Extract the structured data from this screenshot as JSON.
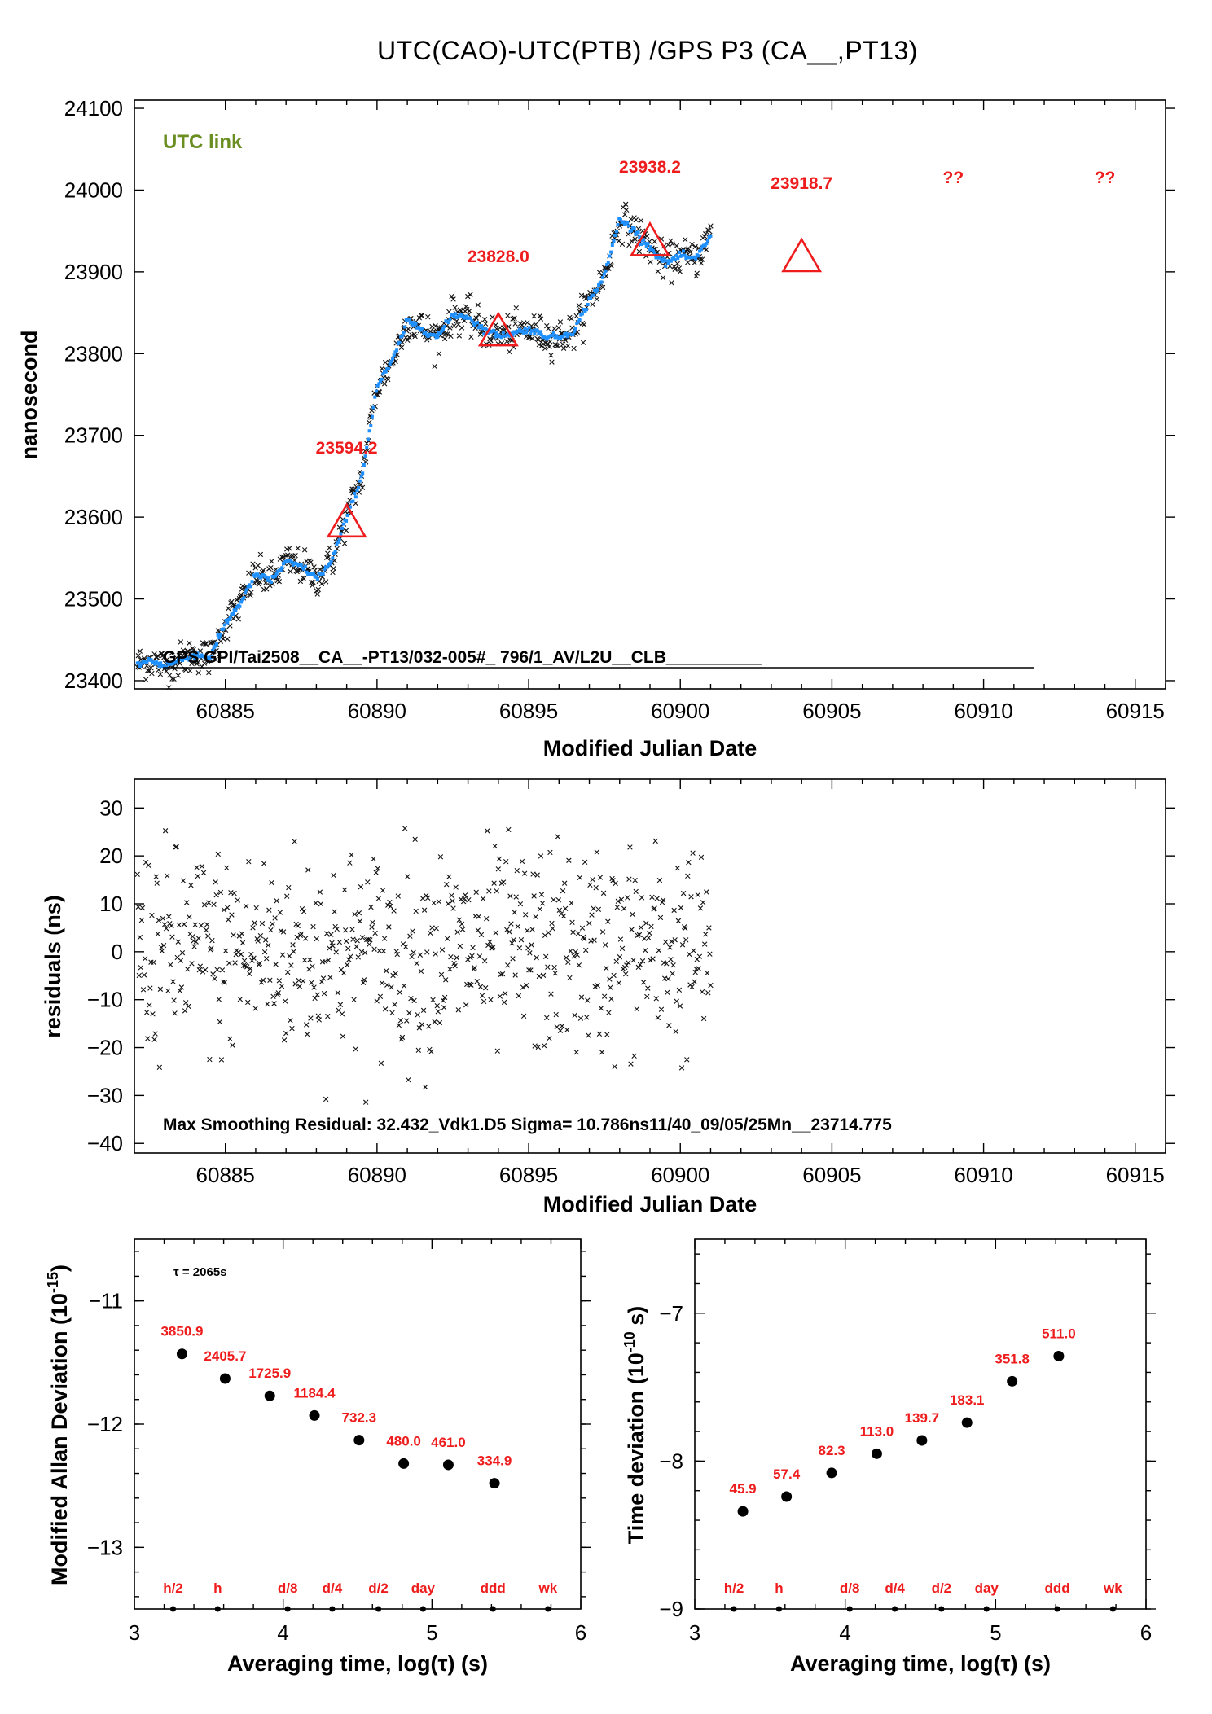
{
  "title": "UTC(CAO)-UTC(PTB)  /GPS  P3  (CA__,PT13)",
  "chart_data": [
    {
      "id": "main",
      "type": "scatter",
      "xlabel": "Modified Julian Date",
      "ylabel": "nanosecond",
      "xlim": [
        60882,
        60916
      ],
      "ylim": [
        23390,
        24110
      ],
      "xticks": [
        "60885",
        "60890",
        "60895",
        "60900",
        "60905",
        "60910",
        "60915"
      ],
      "yticks": [
        "23400",
        "23500",
        "23600",
        "23700",
        "23800",
        "23900",
        "24000",
        "24100"
      ],
      "legend_text": "UTC link",
      "annotation": "GPS GPI/Tai2508__CA__-PT13/032-005#_  796/1_AV/L2U__CLB__________",
      "smoothed_curve": {
        "color": "#1e90ff",
        "x": [
          60882.1,
          60882.5,
          60883,
          60883.5,
          60884,
          60884.5,
          60885,
          60885.5,
          60886,
          60886.5,
          60887,
          60887.5,
          60888,
          60888.5,
          60889,
          60889.5,
          60890,
          60890.5,
          60891,
          60891.5,
          60892,
          60892.5,
          60893,
          60893.5,
          60894,
          60894.5,
          60895,
          60895.5,
          60896,
          60896.5,
          60897,
          60897.5,
          60898,
          60898.5,
          60899,
          60899.5,
          60900,
          60900.5,
          60901
        ],
        "y": [
          23420,
          23425,
          23418,
          23425,
          23432,
          23428,
          23470,
          23495,
          23530,
          23522,
          23545,
          23540,
          23525,
          23545,
          23600,
          23650,
          23760,
          23790,
          23840,
          23830,
          23820,
          23848,
          23845,
          23830,
          23822,
          23825,
          23830,
          23822,
          23820,
          23828,
          23865,
          23895,
          23965,
          23950,
          23930,
          23910,
          23920,
          23915,
          23945
        ]
      },
      "markers": [
        {
          "x": 60889,
          "y": 23594.2,
          "label": "23594.2"
        },
        {
          "x": 60894,
          "y": 23828.0,
          "label": "23828.0"
        },
        {
          "x": 60899,
          "y": 23938.2,
          "label": "23938.2"
        },
        {
          "x": 60904,
          "y": 23918.7,
          "label": "23918.7"
        }
      ],
      "unknown_labels": [
        {
          "x": 60909,
          "label": "??"
        },
        {
          "x": 60914,
          "label": "??"
        }
      ],
      "data_extent": [
        60882.1,
        60901.0
      ]
    },
    {
      "id": "residuals",
      "type": "scatter",
      "xlabel": "Modified Julian Date",
      "ylabel": "residuals (ns)",
      "xlim": [
        60882,
        60916
      ],
      "ylim": [
        -42,
        36
      ],
      "xticks": [
        "60885",
        "60890",
        "60895",
        "60900",
        "60905",
        "60910",
        "60915"
      ],
      "yticks": [
        "-40",
        "-30",
        "-20",
        "-10",
        "0",
        "10",
        "20",
        "30"
      ],
      "annotation": "Max Smoothing Residual: 32.432_Vdk1.D5  Sigma= 10.786ns11/40_09/05/25Mn__23714.775",
      "sigma": 10.786,
      "data_extent": [
        60882.1,
        60901.0
      ]
    },
    {
      "id": "mdev",
      "type": "scatter",
      "xlabel": "Averaging time, log(τ) (s)",
      "ylabel": "Modified Allan Deviation (10",
      "ylabel_exp": "-15",
      "ylabel_end": ")",
      "xlim": [
        3,
        6
      ],
      "ylim": [
        -13.5,
        -10.5
      ],
      "xticks": [
        "3",
        "4",
        "5",
        "6"
      ],
      "yticks": [
        "-13",
        "-12",
        "-11"
      ],
      "tau_label": "τ = 2065s",
      "points": [
        {
          "x": 3.32,
          "y": -11.43,
          "label": "3850.9"
        },
        {
          "x": 3.61,
          "y": -11.63,
          "label": "2405.7"
        },
        {
          "x": 3.91,
          "y": -11.77,
          "label": "1725.9"
        },
        {
          "x": 4.21,
          "y": -11.93,
          "label": "1184.4"
        },
        {
          "x": 4.51,
          "y": -12.13,
          "label": "732.3"
        },
        {
          "x": 4.81,
          "y": -12.32,
          "label": "480.0"
        },
        {
          "x": 5.11,
          "y": -12.33,
          "label": "461.0"
        },
        {
          "x": 5.42,
          "y": -12.48,
          "label": "334.9"
        }
      ],
      "interval_labels": [
        {
          "x": 3.26,
          "label": "h/2"
        },
        {
          "x": 3.56,
          "label": "h"
        },
        {
          "x": 4.03,
          "label": "d/8"
        },
        {
          "x": 4.33,
          "label": "d/4"
        },
        {
          "x": 4.64,
          "label": "d/2"
        },
        {
          "x": 4.94,
          "label": "day"
        },
        {
          "x": 5.41,
          "label": "ddd"
        },
        {
          "x": 5.78,
          "label": "wk"
        }
      ]
    },
    {
      "id": "tdev",
      "type": "scatter",
      "xlabel": "Averaging time, log(τ) (s)",
      "ylabel": "Time deviation (10",
      "ylabel_exp": "-10",
      "ylabel_end": " s)",
      "xlim": [
        3,
        6
      ],
      "ylim": [
        -9,
        -6.5
      ],
      "xticks": [
        "3",
        "4",
        "5",
        "6"
      ],
      "yticks": [
        "-9",
        "-8",
        "-7"
      ],
      "points": [
        {
          "x": 3.32,
          "y": -8.34,
          "label": "45.9"
        },
        {
          "x": 3.61,
          "y": -8.24,
          "label": "57.4"
        },
        {
          "x": 3.91,
          "y": -8.08,
          "label": "82.3"
        },
        {
          "x": 4.21,
          "y": -7.95,
          "label": "113.0"
        },
        {
          "x": 4.51,
          "y": -7.86,
          "label": "139.7"
        },
        {
          "x": 4.81,
          "y": -7.74,
          "label": "183.1"
        },
        {
          "x": 5.11,
          "y": -7.46,
          "label": "351.8"
        },
        {
          "x": 5.42,
          "y": -7.29,
          "label": "511.0"
        }
      ],
      "interval_labels": [
        {
          "x": 3.26,
          "label": "h/2"
        },
        {
          "x": 3.56,
          "label": "h"
        },
        {
          "x": 4.03,
          "label": "d/8"
        },
        {
          "x": 4.33,
          "label": "d/4"
        },
        {
          "x": 4.64,
          "label": "d/2"
        },
        {
          "x": 4.94,
          "label": "day"
        },
        {
          "x": 5.41,
          "label": "ddd"
        },
        {
          "x": 5.78,
          "label": "wk"
        }
      ]
    }
  ]
}
